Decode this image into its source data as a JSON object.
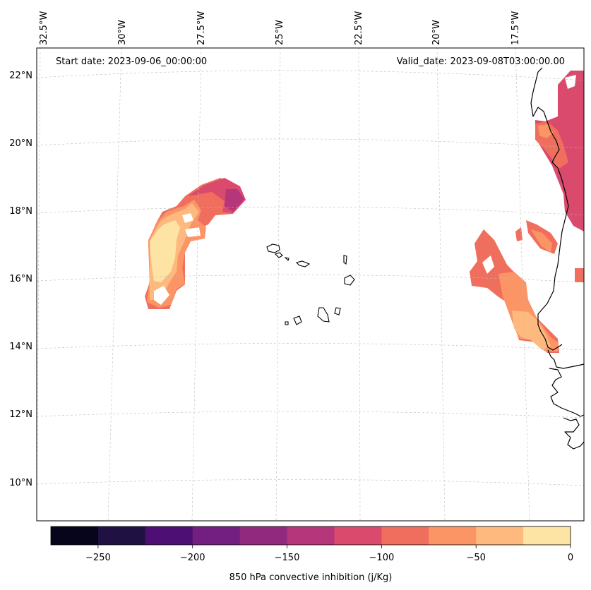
{
  "map": {
    "start_date_text": "Start date: 2023-09-06_00:00:00",
    "valid_date_text": "Valid_date: 2023-09-08T03:00:00.00",
    "longitude_labels": [
      "32.5°W",
      "30°W",
      "27.5°W",
      "25°W",
      "22.5°W",
      "20°W",
      "17.5°W"
    ],
    "latitude_labels": [
      "22°N",
      "20°N",
      "18°N",
      "16°N",
      "14°N",
      "12°N",
      "10°N"
    ],
    "field_name": "850 hPa convective inhibition",
    "unit": "j/Kg"
  },
  "colorbar": {
    "label": "850 hPa convective inhibition (j/Kg)",
    "tick_labels": [
      "−250",
      "−200",
      "−150",
      "−100",
      "−50",
      "0"
    ],
    "range": [
      -275,
      0
    ],
    "levels": [
      -275,
      -250,
      -225,
      -200,
      -175,
      -150,
      -125,
      -100,
      -75,
      -50,
      -25,
      0
    ],
    "colors": [
      "#06051b",
      "#1f1242",
      "#4d0f74",
      "#721f81",
      "#912a7e",
      "#b5367a",
      "#da4a6c",
      "#f06e5d",
      "#fb9565",
      "#feb97f",
      "#fde4a5"
    ]
  },
  "colors": {
    "grid": "#bbbbbb",
    "coastline": "#000000"
  }
}
